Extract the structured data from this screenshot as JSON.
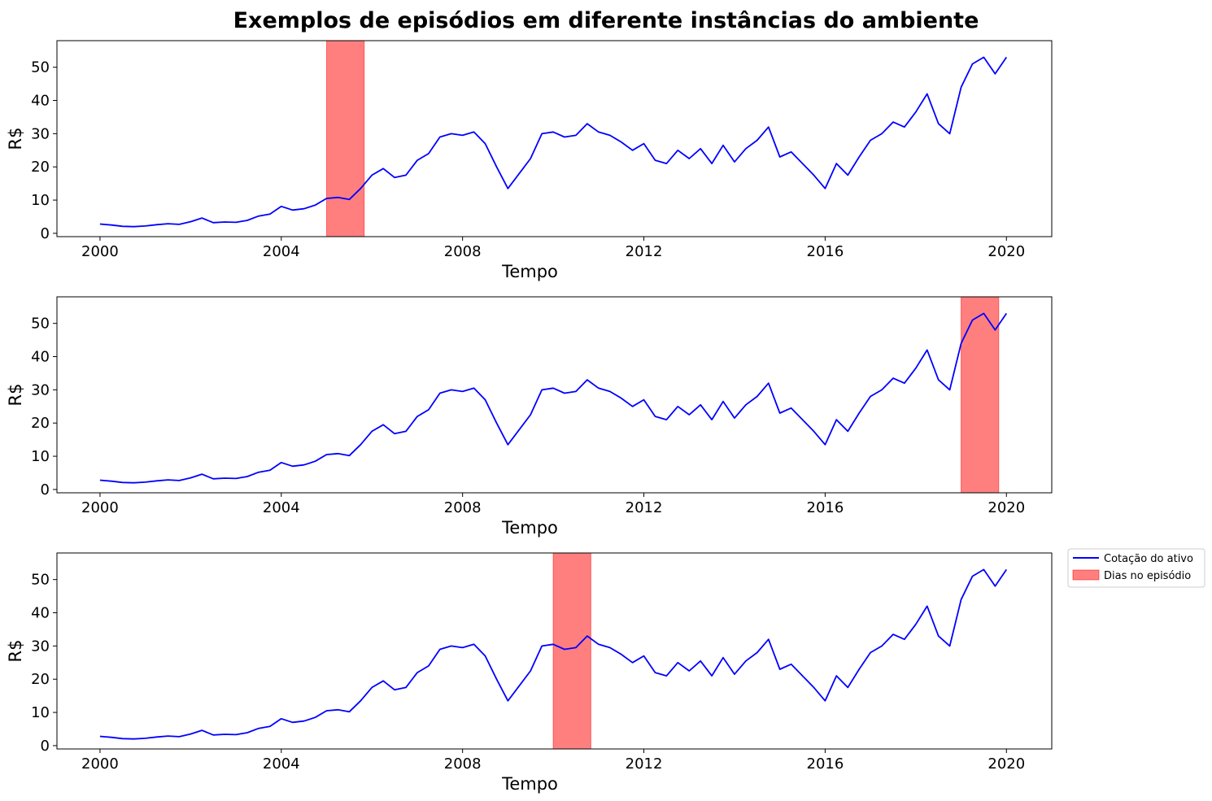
{
  "title": "Exemplos de episódios em diferente instâncias do ambiente",
  "chart_data": [
    {
      "type": "line",
      "xlabel": "Tempo",
      "ylabel": "R$",
      "xlim": [
        1999.05,
        2021.0
      ],
      "ylim": [
        -1,
        58
      ],
      "xticks": [
        "2000",
        "2004",
        "2008",
        "2012",
        "2016",
        "2020"
      ],
      "yticks": [
        "0",
        "10",
        "20",
        "30",
        "40",
        "50"
      ],
      "episode": [
        2005.0,
        2005.83
      ],
      "series": [
        {
          "name": "Cotação do ativo",
          "x": [
            2000.0,
            2000.25,
            2000.5,
            2000.75,
            2001.0,
            2001.25,
            2001.5,
            2001.75,
            2002.0,
            2002.25,
            2002.5,
            2002.75,
            2003.0,
            2003.25,
            2003.5,
            2003.75,
            2004.0,
            2004.25,
            2004.5,
            2004.75,
            2005.0,
            2005.25,
            2005.5,
            2005.75,
            2006.0,
            2006.25,
            2006.5,
            2006.75,
            2007.0,
            2007.25,
            2007.5,
            2007.75,
            2008.0,
            2008.25,
            2008.5,
            2008.75,
            2009.0,
            2009.25,
            2009.5,
            2009.75,
            2010.0,
            2010.25,
            2010.5,
            2010.75,
            2011.0,
            2011.25,
            2011.5,
            2011.75,
            2012.0,
            2012.25,
            2012.5,
            2012.75,
            2013.0,
            2013.25,
            2013.5,
            2013.75,
            2014.0,
            2014.25,
            2014.5,
            2014.75,
            2015.0,
            2015.25,
            2015.5,
            2015.75,
            2016.0,
            2016.25,
            2016.5,
            2016.75,
            2017.0,
            2017.25,
            2017.5,
            2017.75,
            2018.0,
            2018.25,
            2018.5,
            2018.75,
            2019.0,
            2019.25,
            2019.5,
            2019.75,
            2020.0
          ],
          "values": [
            2.8,
            2.5,
            2.1,
            2.0,
            2.2,
            2.6,
            2.9,
            2.7,
            3.5,
            4.6,
            3.2,
            3.4,
            3.3,
            3.9,
            5.2,
            5.8,
            8.1,
            7.0,
            7.4,
            8.5,
            10.5,
            10.8,
            10.2,
            13.5,
            17.5,
            19.5,
            16.8,
            17.5,
            22.0,
            24.0,
            29.0,
            30.0,
            29.5,
            30.5,
            27.0,
            20.0,
            13.5,
            18.0,
            22.5,
            30.0,
            30.5,
            29.0,
            29.5,
            33.0,
            30.5,
            29.5,
            27.5,
            25.0,
            27.0,
            22.0,
            21.0,
            25.0,
            22.5,
            25.5,
            21.0,
            26.5,
            21.5,
            25.5,
            28.0,
            32.0,
            23.0,
            24.5,
            21.0,
            17.5,
            13.5,
            21.0,
            17.5,
            23.0,
            28.0,
            30.0,
            33.5,
            32.0,
            36.5,
            42.0,
            33.0,
            30.0,
            44.0,
            51.0,
            53.0,
            48.0,
            53.0
          ]
        },
        {
          "name": "Dias no episódio"
        }
      ]
    },
    {
      "type": "line",
      "xlabel": "Tempo",
      "ylabel": "R$",
      "xlim": [
        1999.05,
        2021.0
      ],
      "ylim": [
        -1,
        58
      ],
      "xticks": [
        "2000",
        "2004",
        "2008",
        "2012",
        "2016",
        "2020"
      ],
      "yticks": [
        "0",
        "10",
        "20",
        "30",
        "40",
        "50"
      ],
      "episode": [
        2019.0,
        2019.83
      ]
    },
    {
      "type": "line",
      "xlabel": "Tempo",
      "ylabel": "R$",
      "xlim": [
        1999.05,
        2021.0
      ],
      "ylim": [
        -1,
        58
      ],
      "xticks": [
        "2000",
        "2004",
        "2008",
        "2012",
        "2016",
        "2020"
      ],
      "yticks": [
        "0",
        "10",
        "20",
        "30",
        "40",
        "50"
      ],
      "episode": [
        2010.0,
        2010.83
      ]
    }
  ],
  "legend": {
    "placement": "right of bottom panel",
    "items": [
      "Cotação do ativo",
      "Dias no episódio"
    ]
  },
  "colors": {
    "line": "#0000ff",
    "episode_fill": "#ff0000",
    "axes": "#000000"
  }
}
